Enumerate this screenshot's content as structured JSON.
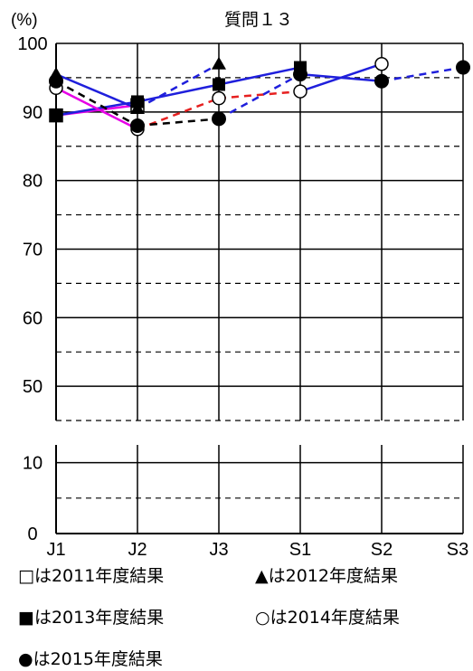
{
  "chart_data": {
    "type": "line",
    "title": "質問１３",
    "ylabel": "(%)",
    "categories": [
      "J1",
      "J2",
      "J3",
      "S1",
      "S2",
      "S3"
    ],
    "y_ticks": [
      "0",
      "10",
      "50",
      "60",
      "70",
      "80",
      "90",
      "100"
    ],
    "y_axis_note": "broken axis between 10 and 50",
    "ylim": [
      0,
      100
    ],
    "grid": true,
    "series": [
      {
        "name": "□は2011年度結果",
        "marker": "square-open",
        "values": [
          89.5,
          91.0,
          null,
          null,
          null,
          null
        ],
        "segment_colors": [
          "#e600e6"
        ],
        "dashed": false
      },
      {
        "name": "▲は2012年度結果",
        "marker": "triangle",
        "values": [
          95.5,
          90.5,
          97.0,
          null,
          null,
          null
        ],
        "segment_colors": [
          "#1f1fdc",
          "#1f1fdc"
        ],
        "dashed": [
          false,
          true
        ]
      },
      {
        "name": "■は2013年度結果",
        "marker": "square",
        "values": [
          89.5,
          91.5,
          94.0,
          96.5,
          null,
          null
        ],
        "segment_colors": [
          "#1f1fdc",
          "#1f1fdc",
          "#1f1fdc"
        ],
        "dashed": [
          false,
          false,
          false
        ]
      },
      {
        "name": "○は2014年度結果",
        "marker": "circle-open",
        "values": [
          93.5,
          87.5,
          92.0,
          93.0,
          97.0,
          null
        ],
        "segment_colors": [
          "#e600e6",
          "#e62020",
          "#e62020",
          "#1f1fdc"
        ],
        "dashed": [
          false,
          true,
          true,
          false
        ]
      },
      {
        "name": "●は2015年度結果",
        "marker": "circle",
        "values": [
          94.5,
          88.0,
          89.0,
          95.5,
          94.5,
          96.5
        ],
        "segment_colors": [
          "#000000",
          "#000000",
          "#1f1fdc",
          "#1f1fdc",
          "#1f1fdc"
        ],
        "dashed": [
          true,
          true,
          true,
          false,
          true
        ]
      }
    ],
    "colors": {
      "blue": "#1f1fdc",
      "red": "#e62020",
      "magenta": "#e600e6",
      "black": "#000000"
    }
  },
  "legend": [
    "□は2011年度結果",
    "▲は2012年度結果",
    "■は2013年度結果",
    "○は2014年度結果",
    "●は2015年度結果"
  ]
}
